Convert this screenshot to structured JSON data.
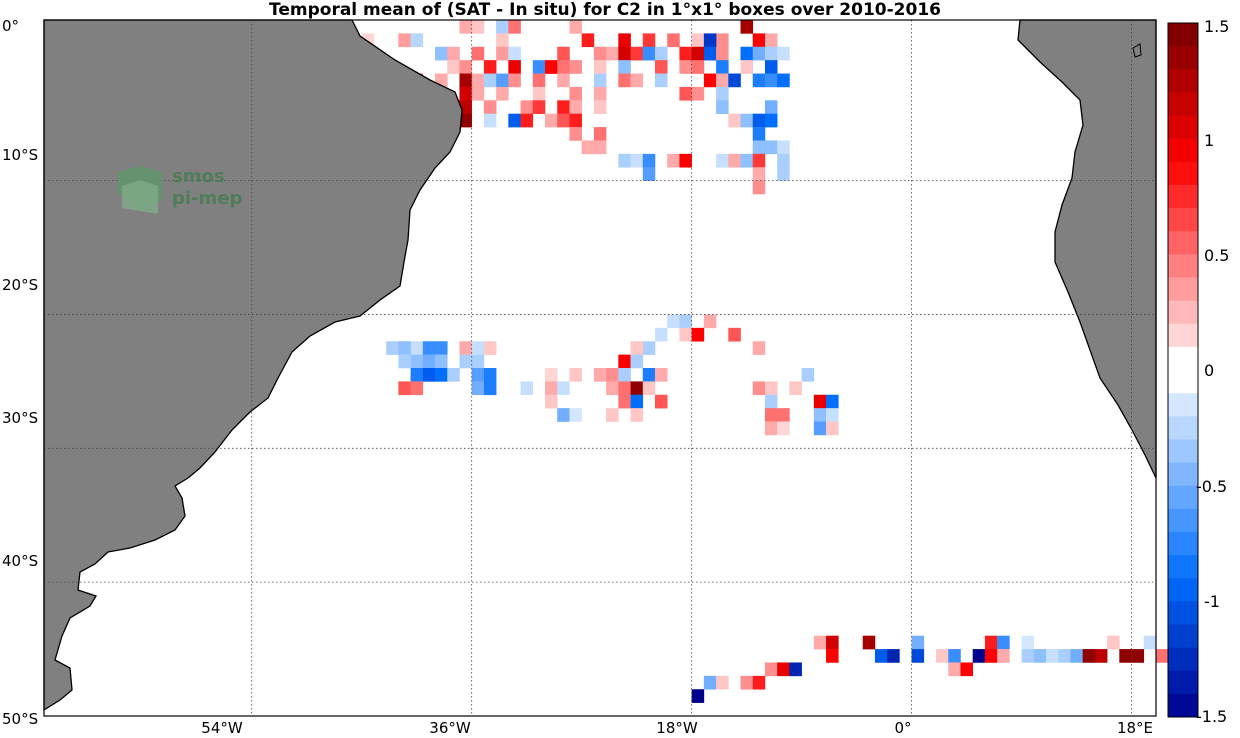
{
  "title": "Temporal mean of (SAT - In situ) for C2 in 1°x1° boxes over 2010-2016",
  "logo": {
    "line1": "smos",
    "line2": "pi-mep"
  },
  "lat_labels": [
    "0°",
    "10°S",
    "20°S",
    "30°S",
    "40°S",
    "50°S"
  ],
  "lon_labels": [
    "54°W",
    "36°W",
    "18°W",
    "0°",
    "18°E"
  ],
  "colorbar": {
    "labels": [
      "1.5",
      "1",
      "0.5",
      "0",
      "-0.5",
      "-1",
      "-1.5"
    ],
    "range": [
      -1.5,
      1.5
    ],
    "levels": 30
  },
  "map_extent": {
    "lon": [
      -71,
      20
    ],
    "lat": [
      -50,
      2
    ]
  },
  "colors": {
    "land": "#808080",
    "coast": "#000000",
    "grid": "#555555"
  },
  "chart_data": {
    "type": "heatmap",
    "title": "Temporal mean of (SAT - In situ) for C2 in 1°x1° boxes over 2010-2016",
    "units": "1°x1° boxes",
    "clim": [
      -1.5,
      1.5
    ],
    "boxes": [
      {
        "lon": -37,
        "lat": 2,
        "v": 0.3
      },
      {
        "lon": -36,
        "lat": 2,
        "v": 0.2
      },
      {
        "lon": -34,
        "lat": 2,
        "v": -0.3
      },
      {
        "lon": -33,
        "lat": 2,
        "v": 0.5
      },
      {
        "lon": -28,
        "lat": 2,
        "v": 0.3
      },
      {
        "lon": -14,
        "lat": 2,
        "v": 1.3
      },
      {
        "lon": -18,
        "lat": 1,
        "v": 0.2
      },
      {
        "lon": -13,
        "lat": 1,
        "v": 0.9
      },
      {
        "lon": -16,
        "lat": 1,
        "v": 0.4
      },
      {
        "lon": -50,
        "lat": 2,
        "v": 0.2
      },
      {
        "lon": -45,
        "lat": 1,
        "v": 0.15
      },
      {
        "lon": -42,
        "lat": 1,
        "v": 0.35
      },
      {
        "lon": -41,
        "lat": 1,
        "v": -0.25
      },
      {
        "lon": -34,
        "lat": 1,
        "v": 0.2
      },
      {
        "lon": -27,
        "lat": 1,
        "v": 0.8
      },
      {
        "lon": -24,
        "lat": 1,
        "v": 1.0
      },
      {
        "lon": -22,
        "lat": 1,
        "v": 0.7
      },
      {
        "lon": -20,
        "lat": 1,
        "v": 0.5
      },
      {
        "lon": -17,
        "lat": 1,
        "v": -1.2
      },
      {
        "lon": -12,
        "lat": 1,
        "v": 0.3
      },
      {
        "lon": -39,
        "lat": 0,
        "v": -0.4
      },
      {
        "lon": -38,
        "lat": 0,
        "v": 0.3
      },
      {
        "lon": -36,
        "lat": 0,
        "v": 0.5
      },
      {
        "lon": -34,
        "lat": 0,
        "v": 0.35
      },
      {
        "lon": -33,
        "lat": 0,
        "v": -0.2
      },
      {
        "lon": -29,
        "lat": 0,
        "v": 0.6
      },
      {
        "lon": -26,
        "lat": 0,
        "v": 0.4
      },
      {
        "lon": -25,
        "lat": 0,
        "v": 0.3
      },
      {
        "lon": -24,
        "lat": 0,
        "v": 1.1
      },
      {
        "lon": -23,
        "lat": 0,
        "v": 0.7
      },
      {
        "lon": -22,
        "lat": 0,
        "v": -0.7
      },
      {
        "lon": -21,
        "lat": 0,
        "v": -0.3
      },
      {
        "lon": -19,
        "lat": 0,
        "v": 0.8
      },
      {
        "lon": -18,
        "lat": 0,
        "v": 1.1
      },
      {
        "lon": -17,
        "lat": 0,
        "v": -1.0
      },
      {
        "lon": -16,
        "lat": 0,
        "v": 0.4
      },
      {
        "lon": -14,
        "lat": 0,
        "v": -0.9
      },
      {
        "lon": -13,
        "lat": 0,
        "v": -0.5
      },
      {
        "lon": -12,
        "lat": 0,
        "v": -0.3
      },
      {
        "lon": -11,
        "lat": 0,
        "v": -0.2
      },
      {
        "lon": -38,
        "lat": -1,
        "v": 0.2
      },
      {
        "lon": -37,
        "lat": -1,
        "v": 0.4
      },
      {
        "lon": -35,
        "lat": -1,
        "v": 0.8
      },
      {
        "lon": -33,
        "lat": -1,
        "v": 1.0
      },
      {
        "lon": -31,
        "lat": -1,
        "v": -0.7
      },
      {
        "lon": -30,
        "lat": -1,
        "v": 0.9
      },
      {
        "lon": -29,
        "lat": -1,
        "v": 0.5
      },
      {
        "lon": -28,
        "lat": -1,
        "v": 0.4
      },
      {
        "lon": -26,
        "lat": -1,
        "v": 0.2
      },
      {
        "lon": -24,
        "lat": -1,
        "v": -0.4
      },
      {
        "lon": -21,
        "lat": -1,
        "v": 0.6
      },
      {
        "lon": -19,
        "lat": -1,
        "v": 0.4
      },
      {
        "lon": -18,
        "lat": -1,
        "v": 0.5
      },
      {
        "lon": -16,
        "lat": -1,
        "v": -0.8
      },
      {
        "lon": -14,
        "lat": -1,
        "v": 0.2
      },
      {
        "lon": -12,
        "lat": -1,
        "v": -1.0
      },
      {
        "lon": -43,
        "lat": -2,
        "v": 1.4
      },
      {
        "lon": -42,
        "lat": -2,
        "v": 1.0
      },
      {
        "lon": -41,
        "lat": -2,
        "v": 0.6
      },
      {
        "lon": -39,
        "lat": -2,
        "v": 0.3
      },
      {
        "lon": -37,
        "lat": -2,
        "v": 1.3
      },
      {
        "lon": -36,
        "lat": -2,
        "v": 0.3
      },
      {
        "lon": -35,
        "lat": -2,
        "v": -0.3
      },
      {
        "lon": -34,
        "lat": -2,
        "v": -0.6
      },
      {
        "lon": -33,
        "lat": -2,
        "v": 0.4
      },
      {
        "lon": -31,
        "lat": -2,
        "v": 0.5
      },
      {
        "lon": -29,
        "lat": -2,
        "v": 0.3
      },
      {
        "lon": -26,
        "lat": -2,
        "v": -0.3
      },
      {
        "lon": -24,
        "lat": -2,
        "v": 0.5
      },
      {
        "lon": -23,
        "lat": -2,
        "v": 0.3
      },
      {
        "lon": -21,
        "lat": -2,
        "v": -0.3
      },
      {
        "lon": -17,
        "lat": -2,
        "v": 0.9
      },
      {
        "lon": -16,
        "lat": -2,
        "v": 0.3
      },
      {
        "lon": -15,
        "lat": -2,
        "v": -1.1
      },
      {
        "lon": -13,
        "lat": -2,
        "v": -0.8
      },
      {
        "lon": -12,
        "lat": -2,
        "v": -0.7
      },
      {
        "lon": -11,
        "lat": -2,
        "v": -0.9
      },
      {
        "lon": -40,
        "lat": -3,
        "v": 0.4
      },
      {
        "lon": -37,
        "lat": -3,
        "v": 1.1
      },
      {
        "lon": -36,
        "lat": -3,
        "v": 0.3
      },
      {
        "lon": -34,
        "lat": -3,
        "v": 0.3
      },
      {
        "lon": -31,
        "lat": -3,
        "v": 0.2
      },
      {
        "lon": -28,
        "lat": -3,
        "v": 0.4
      },
      {
        "lon": -26,
        "lat": -3,
        "v": 0.3
      },
      {
        "lon": -19,
        "lat": -3,
        "v": 0.6
      },
      {
        "lon": -18,
        "lat": -3,
        "v": 0.4
      },
      {
        "lon": -16,
        "lat": -3,
        "v": -0.3
      },
      {
        "lon": -40,
        "lat": -4,
        "v": 0.3
      },
      {
        "lon": -38,
        "lat": -4,
        "v": 0.8
      },
      {
        "lon": -37,
        "lat": -4,
        "v": 1.2
      },
      {
        "lon": -35,
        "lat": -4,
        "v": 0.4
      },
      {
        "lon": -32,
        "lat": -4,
        "v": 0.4
      },
      {
        "lon": -31,
        "lat": -4,
        "v": 0.7
      },
      {
        "lon": -29,
        "lat": -4,
        "v": 0.8
      },
      {
        "lon": -28,
        "lat": -4,
        "v": 0.3
      },
      {
        "lon": -26,
        "lat": -4,
        "v": 0.2
      },
      {
        "lon": -16,
        "lat": -4,
        "v": -0.4
      },
      {
        "lon": -12,
        "lat": -4,
        "v": -0.5
      },
      {
        "lon": -38,
        "lat": -5,
        "v": 1.4
      },
      {
        "lon": -37,
        "lat": -5,
        "v": 1.4
      },
      {
        "lon": -35,
        "lat": -5,
        "v": -0.2
      },
      {
        "lon": -33,
        "lat": -5,
        "v": -1.0
      },
      {
        "lon": -32,
        "lat": -5,
        "v": 0.8
      },
      {
        "lon": -30,
        "lat": -5,
        "v": 0.3
      },
      {
        "lon": -29,
        "lat": -5,
        "v": 0.6
      },
      {
        "lon": -28,
        "lat": -5,
        "v": 0.8
      },
      {
        "lon": -15,
        "lat": -5,
        "v": 0.2
      },
      {
        "lon": -14,
        "lat": -5,
        "v": -0.4
      },
      {
        "lon": -13,
        "lat": -5,
        "v": -1.0
      },
      {
        "lon": -12,
        "lat": -5,
        "v": -0.9
      },
      {
        "lon": -28,
        "lat": -6,
        "v": 0.4
      },
      {
        "lon": -26,
        "lat": -6,
        "v": 0.5
      },
      {
        "lon": -13,
        "lat": -6,
        "v": -0.8
      },
      {
        "lon": -27,
        "lat": -7,
        "v": 0.3
      },
      {
        "lon": -26,
        "lat": -7,
        "v": 0.3
      },
      {
        "lon": -13,
        "lat": -7,
        "v": -0.4
      },
      {
        "lon": -12,
        "lat": -7,
        "v": -0.4
      },
      {
        "lon": -11,
        "lat": -7,
        "v": -0.2
      },
      {
        "lon": -24,
        "lat": -8,
        "v": -0.3
      },
      {
        "lon": -23,
        "lat": -8,
        "v": -0.2
      },
      {
        "lon": -22,
        "lat": -8,
        "v": -0.7
      },
      {
        "lon": -20,
        "lat": -8,
        "v": 0.3
      },
      {
        "lon": -19,
        "lat": -8,
        "v": 0.9
      },
      {
        "lon": -16,
        "lat": -8,
        "v": -0.2
      },
      {
        "lon": -15,
        "lat": -8,
        "v": 0.3
      },
      {
        "lon": -14,
        "lat": -8,
        "v": -0.4
      },
      {
        "lon": -13,
        "lat": -8,
        "v": 0.7
      },
      {
        "lon": -11,
        "lat": -8,
        "v": -0.3
      },
      {
        "lon": -22,
        "lat": -9,
        "v": -0.6
      },
      {
        "lon": -13,
        "lat": -9,
        "v": 0.3
      },
      {
        "lon": -11,
        "lat": -9,
        "v": -0.3
      },
      {
        "lon": -13,
        "lat": -10,
        "v": 0.4
      },
      {
        "lon": -20,
        "lat": -20,
        "v": -0.2
      },
      {
        "lon": -19,
        "lat": -20,
        "v": -0.3
      },
      {
        "lon": -17,
        "lat": -20,
        "v": 0.3
      },
      {
        "lon": -19,
        "lat": -21,
        "v": 0.2
      },
      {
        "lon": -21,
        "lat": -21,
        "v": -0.2
      },
      {
        "lon": -18,
        "lat": -21,
        "v": 0.9
      },
      {
        "lon": -15,
        "lat": -21,
        "v": 0.6
      },
      {
        "lon": -22,
        "lat": -22,
        "v": -0.3
      },
      {
        "lon": -23,
        "lat": -22,
        "v": 0.2
      },
      {
        "lon": -13,
        "lat": -22,
        "v": 0.3
      },
      {
        "lon": -24,
        "lat": -23,
        "v": 0.9
      },
      {
        "lon": -23,
        "lat": -23,
        "v": -0.3
      },
      {
        "lon": -41,
        "lat": -22,
        "v": -0.2
      },
      {
        "lon": -35,
        "lat": -22,
        "v": 0.2
      },
      {
        "lon": -43,
        "lat": -22,
        "v": -0.3
      },
      {
        "lon": -42,
        "lat": -22,
        "v": -0.4
      },
      {
        "lon": -40,
        "lat": -22,
        "v": -0.7
      },
      {
        "lon": -39,
        "lat": -22,
        "v": -0.7
      },
      {
        "lon": -37,
        "lat": -22,
        "v": 0.3
      },
      {
        "lon": -36,
        "lat": -22,
        "v": -0.2
      },
      {
        "lon": -36,
        "lat": -23,
        "v": -0.3
      },
      {
        "lon": -41,
        "lat": -23,
        "v": -0.4
      },
      {
        "lon": -42,
        "lat": -23,
        "v": -0.3
      },
      {
        "lon": -40,
        "lat": -23,
        "v": -0.5
      },
      {
        "lon": -39,
        "lat": -23,
        "v": -0.4
      },
      {
        "lon": -37,
        "lat": -23,
        "v": -0.3
      },
      {
        "lon": -41,
        "lat": -24,
        "v": -0.8
      },
      {
        "lon": -40,
        "lat": -24,
        "v": -1.0
      },
      {
        "lon": -39,
        "lat": -24,
        "v": -0.9
      },
      {
        "lon": -38,
        "lat": -24,
        "v": -0.3
      },
      {
        "lon": -36,
        "lat": -24,
        "v": -0.6
      },
      {
        "lon": -35,
        "lat": -24,
        "v": -0.8
      },
      {
        "lon": -42,
        "lat": -25,
        "v": 0.6
      },
      {
        "lon": -41,
        "lat": -25,
        "v": 0.5
      },
      {
        "lon": -36,
        "lat": -25,
        "v": -0.5
      },
      {
        "lon": -35,
        "lat": -25,
        "v": -0.8
      },
      {
        "lon": -30,
        "lat": -24,
        "v": 0.15
      },
      {
        "lon": -28,
        "lat": -24,
        "v": 0.2
      },
      {
        "lon": -26,
        "lat": -24,
        "v": 0.3
      },
      {
        "lon": -25,
        "lat": -24,
        "v": 0.4
      },
      {
        "lon": -24,
        "lat": -24,
        "v": -0.3
      },
      {
        "lon": -22,
        "lat": -24,
        "v": -0.8
      },
      {
        "lon": -21,
        "lat": -24,
        "v": 0.3
      },
      {
        "lon": -30,
        "lat": -25,
        "v": 0.3
      },
      {
        "lon": -29,
        "lat": -25,
        "v": -0.2
      },
      {
        "lon": -25,
        "lat": -25,
        "v": 0.3
      },
      {
        "lon": -24,
        "lat": -25,
        "v": 0.5
      },
      {
        "lon": -23,
        "lat": -25,
        "v": 1.4
      },
      {
        "lon": -22,
        "lat": -25,
        "v": 0.2
      },
      {
        "lon": -32,
        "lat": -25,
        "v": -0.2
      },
      {
        "lon": -13,
        "lat": -25,
        "v": 0.4
      },
      {
        "lon": -12,
        "lat": -25,
        "v": 0.2
      },
      {
        "lon": -30,
        "lat": -26,
        "v": 0.2
      },
      {
        "lon": -24,
        "lat": -26,
        "v": 0.5
      },
      {
        "lon": -23,
        "lat": -26,
        "v": -0.9
      },
      {
        "lon": -21,
        "lat": -26,
        "v": 0.6
      },
      {
        "lon": -12,
        "lat": -26,
        "v": -0.3
      },
      {
        "lon": -8,
        "lat": -26,
        "v": 1.0
      },
      {
        "lon": -7,
        "lat": -26,
        "v": -0.9
      },
      {
        "lon": -29,
        "lat": -27,
        "v": -0.5
      },
      {
        "lon": -28,
        "lat": -27,
        "v": -0.15
      },
      {
        "lon": -25,
        "lat": -27,
        "v": 0.2
      },
      {
        "lon": -23,
        "lat": -27,
        "v": 0.2
      },
      {
        "lon": -12,
        "lat": -27,
        "v": 0.5
      },
      {
        "lon": -11,
        "lat": -27,
        "v": 0.5
      },
      {
        "lon": -8,
        "lat": -27,
        "v": -0.4
      },
      {
        "lon": -7,
        "lat": -27,
        "v": -0.2
      },
      {
        "lon": -12,
        "lat": -28,
        "v": 0.3
      },
      {
        "lon": -11,
        "lat": -28,
        "v": 0.15
      },
      {
        "lon": -8,
        "lat": -28,
        "v": -0.6
      },
      {
        "lon": -7,
        "lat": -28,
        "v": 0.2
      },
      {
        "lon": -9,
        "lat": -24,
        "v": -0.3
      },
      {
        "lon": -10,
        "lat": -25,
        "v": 0.2
      },
      {
        "lon": -8,
        "lat": -44,
        "v": 0.3
      },
      {
        "lon": -7,
        "lat": -44,
        "v": 1.1
      },
      {
        "lon": -4,
        "lat": -44,
        "v": 1.3
      },
      {
        "lon": 0,
        "lat": -44,
        "v": -0.5
      },
      {
        "lon": 6,
        "lat": -44,
        "v": 0.8
      },
      {
        "lon": 7,
        "lat": -44,
        "v": -0.7
      },
      {
        "lon": 9,
        "lat": -44,
        "v": -0.15
      },
      {
        "lon": 16,
        "lat": -44,
        "v": 0.2
      },
      {
        "lon": 19,
        "lat": -44,
        "v": -0.2
      },
      {
        "lon": -7,
        "lat": -45,
        "v": 0.9
      },
      {
        "lon": -3,
        "lat": -45,
        "v": -1.0
      },
      {
        "lon": -2,
        "lat": -45,
        "v": -1.3
      },
      {
        "lon": 0,
        "lat": -45,
        "v": -1.1
      },
      {
        "lon": 2,
        "lat": -45,
        "v": 0.2
      },
      {
        "lon": 3,
        "lat": -45,
        "v": -0.7
      },
      {
        "lon": 5,
        "lat": -45,
        "v": -1.5
      },
      {
        "lon": 6,
        "lat": -45,
        "v": 0.9
      },
      {
        "lon": 7,
        "lat": -45,
        "v": 0.3
      },
      {
        "lon": 9,
        "lat": -45,
        "v": -0.3
      },
      {
        "lon": 10,
        "lat": -45,
        "v": -0.4
      },
      {
        "lon": 11,
        "lat": -45,
        "v": -0.2
      },
      {
        "lon": 12,
        "lat": -45,
        "v": -0.3
      },
      {
        "lon": 13,
        "lat": -45,
        "v": -0.5
      },
      {
        "lon": 14,
        "lat": -45,
        "v": 1.4
      },
      {
        "lon": 15,
        "lat": -45,
        "v": 1.2
      },
      {
        "lon": 17,
        "lat": -45,
        "v": 1.4
      },
      {
        "lon": 18,
        "lat": -45,
        "v": 1.4
      },
      {
        "lon": 20,
        "lat": -45,
        "v": 0.5
      },
      {
        "lon": -12,
        "lat": -46,
        "v": 0.4
      },
      {
        "lon": -11,
        "lat": -46,
        "v": 1.0
      },
      {
        "lon": -10,
        "lat": -46,
        "v": -1.3
      },
      {
        "lon": 3,
        "lat": -46,
        "v": 0.3
      },
      {
        "lon": 4,
        "lat": -46,
        "v": 0.9
      },
      {
        "lon": -17,
        "lat": -47,
        "v": -0.5
      },
      {
        "lon": -16,
        "lat": -47,
        "v": 0.2
      },
      {
        "lon": -14,
        "lat": -47,
        "v": 0.4
      },
      {
        "lon": -13,
        "lat": -47,
        "v": 0.8
      },
      {
        "lon": -18,
        "lat": -48,
        "v": -1.5
      }
    ]
  }
}
